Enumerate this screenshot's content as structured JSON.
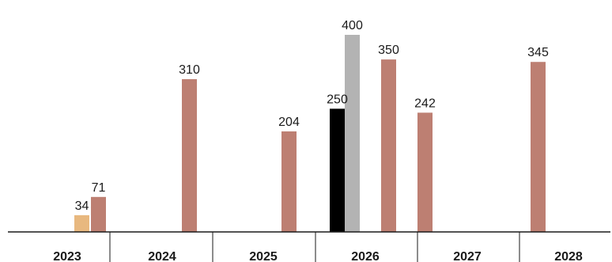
{
  "chart_data": {
    "type": "bar",
    "title": "",
    "xlabel": "",
    "ylabel": "",
    "categories": [
      "2023",
      "2024",
      "2025",
      "2026",
      "2027",
      "2028"
    ],
    "ylim": [
      0,
      420
    ],
    "grid": false,
    "legend": "none",
    "bars": [
      {
        "category": "2023",
        "value": 34,
        "label": "34",
        "color": "#e8b87f"
      },
      {
        "category": "2023",
        "value": 71,
        "label": "71",
        "color": "#bd7f72"
      },
      {
        "category": "2024",
        "value": 310,
        "label": "310",
        "color": "#bd7f72"
      },
      {
        "category": "2025",
        "value": 204,
        "label": "204",
        "color": "#bd7f72"
      },
      {
        "category": "2026",
        "value": 250,
        "label": "250",
        "color": "#000000"
      },
      {
        "category": "2026",
        "value": 400,
        "label": "400",
        "color": "#b3b3b3"
      },
      {
        "category": "2026",
        "value": 350,
        "label": "350",
        "color": "#bd7f72"
      },
      {
        "category": "2027",
        "value": 242,
        "label": "242",
        "color": "#bd7f72"
      },
      {
        "category": "2028",
        "value": 345,
        "label": "345",
        "color": "#bd7f72"
      }
    ]
  }
}
